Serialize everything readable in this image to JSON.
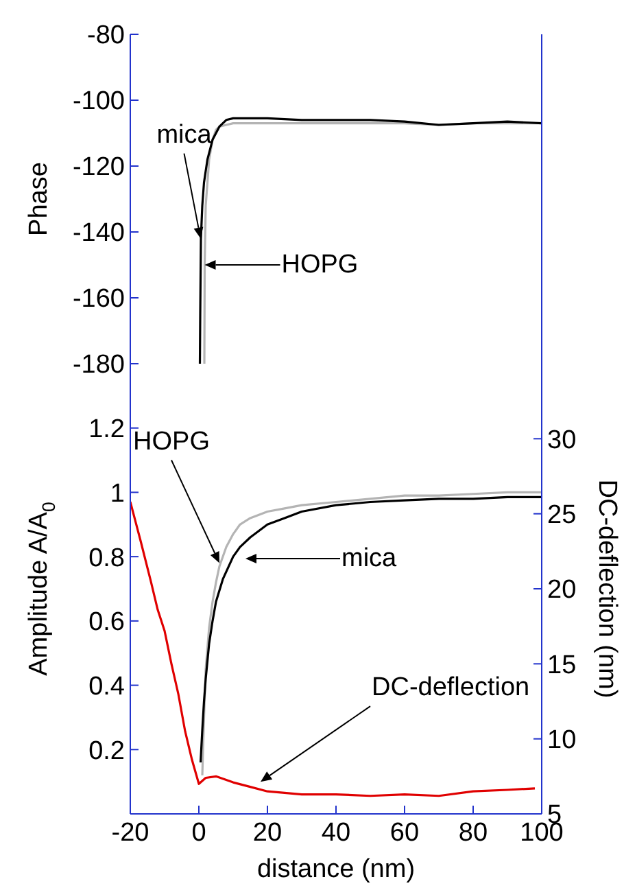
{
  "chart_data": [
    {
      "type": "line",
      "ylabel": "Phase",
      "xlim": [
        -20,
        100
      ],
      "xticks": [
        -20,
        0,
        20,
        40,
        60,
        80,
        100
      ],
      "ylim": [
        -180,
        -80
      ],
      "yticks": [
        -80,
        -100,
        -120,
        -140,
        -160,
        -180
      ],
      "tick_labels": "y",
      "marker": "none",
      "series": [
        {
          "color": "#b4b4b4",
          "x": [
            1.6,
            1.7,
            2,
            3,
            4,
            5,
            6,
            8,
            10,
            15,
            20,
            30,
            40,
            50,
            60,
            70,
            80,
            90,
            100
          ],
          "values": [
            -180,
            -150,
            -132,
            -118,
            -112,
            -109,
            -108,
            -107.5,
            -107,
            -107,
            -107,
            -107,
            -107,
            -107,
            -107,
            -107.5,
            -107,
            -107,
            -107
          ]
        },
        {
          "color": "#000000",
          "x": [
            0.3,
            0.4,
            0.6,
            1,
            1.5,
            2.5,
            4,
            6,
            8,
            10,
            15,
            20,
            30,
            40,
            50,
            60,
            70,
            80,
            90,
            100
          ],
          "values": [
            -180,
            -165,
            -142,
            -132,
            -125,
            -118,
            -112,
            -108,
            -106,
            -105.5,
            -105.5,
            -105.5,
            -106,
            -106,
            -106,
            -106.5,
            -107.5,
            -107,
            -106.5,
            -107
          ]
        }
      ],
      "annotations": [
        {
          "text": "mica",
          "x": 0.5,
          "y": -142
        },
        {
          "text": "HOPG",
          "x": 1.7,
          "y": -150
        }
      ]
    },
    {
      "type": "line",
      "xlabel": "distance (nm)",
      "ylabel": "Amplitude A/A$_{0}$",
      "y2label": "DC-deflection (nm)",
      "xlim": [
        -20,
        100
      ],
      "xticks": [
        -20,
        0,
        20,
        40,
        60,
        80,
        100
      ],
      "ylim": [
        0,
        1.4
      ],
      "yticks": [
        0.2,
        0.4,
        0.6,
        0.8,
        1,
        1.2
      ],
      "y2lim": [
        5,
        35
      ],
      "y2ticks": [
        5,
        10,
        15,
        20,
        25,
        30
      ],
      "marker": "none",
      "series": [
        {
          "color": "#b4b4b4",
          "x": [
            1,
            1.5,
            2,
            3,
            4,
            5,
            6,
            8,
            10,
            12,
            15,
            20,
            25,
            30,
            40,
            50,
            60,
            70,
            80,
            90,
            100
          ],
          "values": [
            0.12,
            0.3,
            0.45,
            0.58,
            0.66,
            0.72,
            0.77,
            0.83,
            0.87,
            0.9,
            0.92,
            0.94,
            0.95,
            0.96,
            0.97,
            0.98,
            0.99,
            0.99,
            0.995,
            1.0,
            1.0
          ]
        },
        {
          "color": "#000000",
          "x": [
            0.5,
            1,
            1.5,
            2,
            3,
            4,
            5,
            7,
            10,
            12,
            15,
            20,
            25,
            30,
            40,
            50,
            60,
            70,
            80,
            90,
            100
          ],
          "values": [
            0.16,
            0.26,
            0.35,
            0.42,
            0.53,
            0.6,
            0.66,
            0.73,
            0.8,
            0.83,
            0.86,
            0.9,
            0.92,
            0.94,
            0.96,
            0.97,
            0.975,
            0.98,
            0.98,
            0.985,
            0.985
          ]
        },
        {
          "color": "#e00000",
          "axis": "y2",
          "x": [
            -20,
            -17,
            -14,
            -12,
            -10,
            -8,
            -6,
            -4,
            -2,
            0,
            2,
            5,
            10,
            15,
            20,
            30,
            40,
            50,
            60,
            70,
            80,
            90,
            98
          ],
          "values": [
            25.8,
            23.2,
            20.5,
            18.6,
            17.2,
            15,
            13,
            10.5,
            8.6,
            7,
            7.4,
            7.5,
            7.1,
            6.8,
            6.5,
            6.3,
            6.3,
            6.2,
            6.3,
            6.2,
            6.5,
            6.6,
            6.7
          ]
        }
      ],
      "annotations": [
        {
          "text": "HOPG",
          "x": 6,
          "y": 0.78
        },
        "mica",
        {
          "text": "DC-deflection",
          "x": 18,
          "y": 0.1
        }
      ]
    }
  ]
}
